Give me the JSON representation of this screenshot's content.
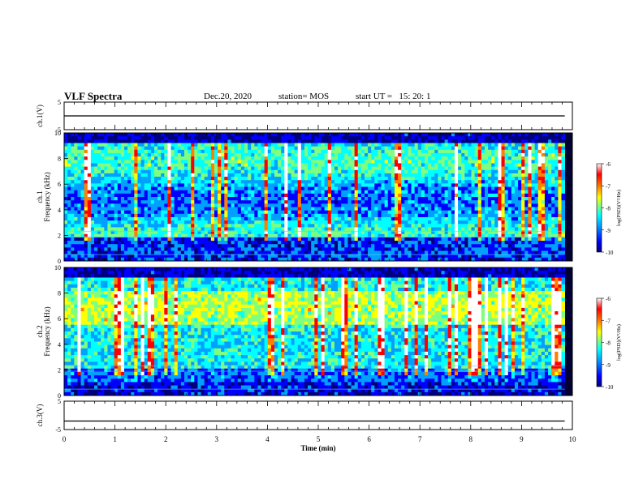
{
  "header": {
    "title": "VLF Spectra",
    "date": "Dec.20, 2020",
    "station": "station= MOS",
    "start_ut": "start UT =   15: 20: 1"
  },
  "panels": {
    "ch1_wave_label": "ch.1(V)",
    "ch1_spec_label": "ch.1",
    "ch2_spec_label": "ch.2",
    "ch3_wave_label": "ch.3(V)",
    "freq_label": "Frequency (kHz)",
    "time_label": "Time (min)",
    "colorbar_label": "log(PSD)(V²/Hz)"
  },
  "colors": {
    "spectrogram_background": "#000033",
    "colormap": [
      "#00007f",
      "#0000ff",
      "#00a0ff",
      "#00ffff",
      "#7fff7f",
      "#ffff00",
      "#ff7f00",
      "#ff0000",
      "#ffffff"
    ]
  },
  "chart_data": [
    {
      "type": "line",
      "ylabel": "ch.1(V)",
      "ylim": [
        -5,
        5
      ],
      "yticks": [
        -5,
        5
      ],
      "xlim": [
        0,
        10
      ],
      "series": [
        {
          "x": [
            0,
            9.85
          ],
          "values": [
            0,
            0
          ]
        }
      ]
    },
    {
      "type": "heatmap",
      "ylabel": "ch.1 Frequency (kHz)",
      "xlim": [
        0,
        10
      ],
      "ylim": [
        0,
        10
      ],
      "yticks": [
        0,
        2,
        4,
        6,
        8,
        10
      ],
      "data_extent_min": 9.85,
      "colorbar": {
        "label": "log(PSD)(V²/Hz)",
        "range": [
          -10,
          -6
        ],
        "ticks": [
          -10,
          -9,
          -8,
          -7,
          -6
        ]
      }
    },
    {
      "type": "heatmap",
      "ylabel": "ch.2 Frequency (kHz)",
      "xlim": [
        0,
        10
      ],
      "ylim": [
        0,
        10
      ],
      "yticks": [
        0,
        2,
        4,
        6,
        8,
        10
      ],
      "data_extent_min": 9.85,
      "colorbar": {
        "label": "log(PSD)(V²/Hz)",
        "range": [
          -10,
          -6
        ],
        "ticks": [
          -10,
          -9,
          -8,
          -7,
          -6
        ]
      }
    },
    {
      "type": "line",
      "ylabel": "ch.3(V)",
      "ylim": [
        -5,
        5
      ],
      "yticks": [
        -5,
        5
      ],
      "xlim": [
        0,
        10
      ],
      "xlabel": "Time (min)",
      "xticks": [
        0,
        1,
        2,
        3,
        4,
        5,
        6,
        7,
        8,
        9,
        10
      ],
      "series": [
        {
          "x": [
            0,
            9.85
          ],
          "values": [
            -2,
            -2
          ]
        }
      ]
    }
  ]
}
